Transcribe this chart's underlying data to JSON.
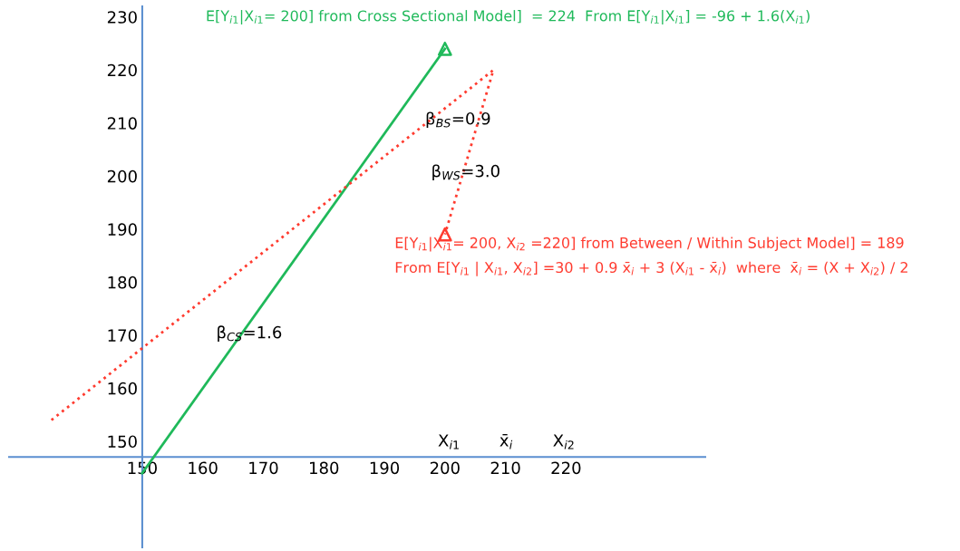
{
  "chart_data": {
    "type": "line",
    "xlim": [
      128,
      243
    ],
    "ylim": [
      130,
      232
    ],
    "xticks": [
      150,
      160,
      170,
      180,
      190,
      200,
      210,
      220
    ],
    "yticks": [
      150,
      160,
      170,
      180,
      190,
      200,
      210,
      220,
      230
    ],
    "grid": false,
    "legend": false,
    "series": [
      {
        "name": "E[Y$_{i1}$|X$_{i1}$= 200] from Cross Sectional Model]  = 224  From E[Y$_{i1}$|X$_{i1}$] = -96 + 1.6(X$_{i1}$)",
        "color": "#1fb95a",
        "x": [
          150,
          200
        ],
        "values": [
          144,
          224
        ],
        "line_style": "solid"
      },
      {
        "name": "E[Y$_{i1}$|X$_{i1}$= 200, X$_{i2}$ =220] from Between / Within Subject Model] = 189\nFrom E[Y$_{i1}$ | X$_{i1}$, X$_{i2}$] =30 + 0.9 x̄$_{i}$ + 3 (X$_{i1}$ - x̄$_{i}$)  where  x̄$_{i}$ = (X + X$_{i2}$) / 2",
        "color": "#ff3b2f",
        "x": [
          135,
          208,
          200
        ],
        "values": [
          154,
          220,
          189
        ],
        "line_style": "dotted"
      },
      {
        "type": "scatter",
        "marker": "triangle",
        "color": "#1fb95a",
        "x": [
          200
        ],
        "values": [
          224
        ]
      },
      {
        "type": "scatter",
        "marker": "triangle",
        "color": "#ff3b2f",
        "x": [
          200
        ],
        "values": [
          189
        ]
      }
    ],
    "annotations": [
      "β$_{BS}$=0.9",
      "β$_{WS}$=3.0",
      "β$_{CS}$=1.6",
      "X$_{i1}$",
      "x̄$_{i}$",
      "X$_{i2}$"
    ]
  }
}
